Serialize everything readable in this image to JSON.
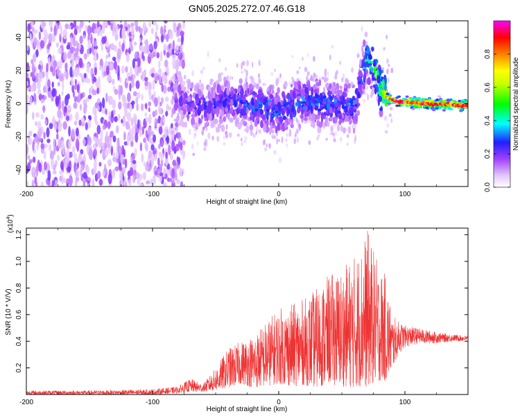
{
  "title": "GN05.2025.272.07.46.G18",
  "chart_data": [
    {
      "type": "heatmap",
      "xlabel": "Height of straight line (km)",
      "ylabel": "Frequency (Hz)",
      "xlim": [
        -200,
        150
      ],
      "ylim": [
        -50,
        50
      ],
      "xticks": [
        -200,
        -100,
        0,
        100
      ],
      "xtick_labels": [
        "-200",
        "-100",
        "0",
        "100"
      ],
      "yticks": [
        -40,
        -20,
        0,
        20,
        40
      ],
      "ytick_labels": [
        "-40",
        "-20",
        "0",
        "20",
        "40"
      ],
      "colorbar": {
        "label": "Normalized spectral amplitude",
        "range": [
          0,
          1
        ],
        "ticks": [
          0,
          0.2,
          0.4,
          0.6,
          0.8
        ],
        "tick_labels": [
          "0.0",
          "0.2",
          "0.4",
          "0.6",
          "0.8"
        ]
      },
      "ridge": {
        "x": [
          -80,
          -60,
          -40,
          -20,
          0,
          20,
          40,
          60,
          65,
          70,
          75,
          80,
          85,
          90,
          100,
          120,
          150
        ],
        "y": [
          3,
          -3,
          2,
          -1,
          -5,
          2,
          0,
          -2,
          15,
          28,
          22,
          10,
          4,
          2,
          1,
          0,
          -1
        ],
        "amplitude": [
          0.2,
          0.25,
          0.25,
          0.3,
          0.3,
          0.3,
          0.3,
          0.3,
          0.3,
          0.4,
          0.45,
          0.55,
          0.7,
          0.85,
          0.9,
          0.9,
          0.85
        ]
      }
    },
    {
      "type": "line",
      "xlabel": "Height of straight line (km)",
      "ylabel": "SNR (10 * V/V)",
      "y_scale_label": "(x10",
      "y_scale_exp": "4",
      "xlim": [
        -200,
        150
      ],
      "ylim": [
        0,
        1.25
      ],
      "xticks": [
        -200,
        -100,
        0,
        100
      ],
      "xtick_labels": [
        "-200",
        "-100",
        "0",
        "100"
      ],
      "yticks": [
        0.2,
        0.4,
        0.6,
        0.8,
        1.0,
        1.2
      ],
      "ytick_labels": [
        "0.2",
        "0.4",
        "0.6",
        "0.8",
        "1.0",
        "1.2"
      ],
      "color": "#ee3333",
      "envelope": {
        "x": [
          -200,
          -150,
          -100,
          -80,
          -70,
          -60,
          -50,
          -40,
          -30,
          -20,
          -10,
          0,
          10,
          20,
          30,
          40,
          50,
          60,
          65,
          70,
          75,
          80,
          85,
          90,
          95,
          100,
          110,
          120,
          130,
          140,
          150
        ],
        "upper": [
          0.03,
          0.03,
          0.04,
          0.06,
          0.12,
          0.08,
          0.2,
          0.35,
          0.4,
          0.45,
          0.55,
          0.65,
          0.68,
          0.72,
          0.8,
          0.9,
          0.95,
          1.05,
          1.1,
          1.25,
          1.1,
          0.95,
          0.9,
          0.6,
          0.55,
          0.52,
          0.5,
          0.48,
          0.46,
          0.45,
          0.44
        ],
        "lower": [
          0.0,
          0.0,
          0.0,
          0.01,
          0.02,
          0.02,
          0.03,
          0.05,
          0.08,
          0.05,
          0.06,
          0.08,
          0.06,
          0.07,
          0.05,
          0.08,
          0.06,
          0.05,
          0.06,
          0.05,
          0.08,
          0.1,
          0.1,
          0.2,
          0.3,
          0.35,
          0.38,
          0.38,
          0.39,
          0.4,
          0.4
        ]
      }
    }
  ]
}
